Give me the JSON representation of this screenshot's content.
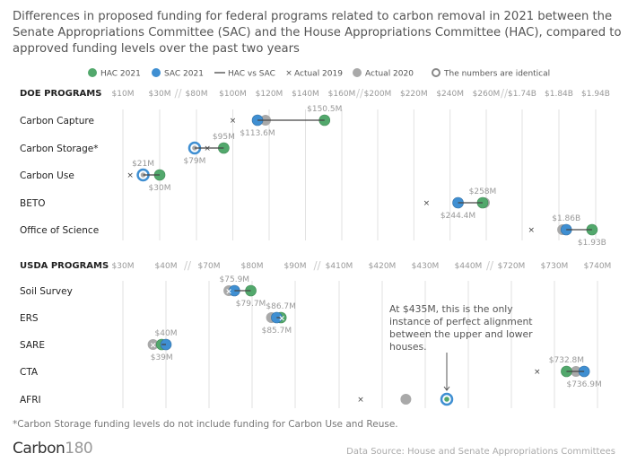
{
  "title": "Differences in proposed funding for federal programs related to carbon removal in 2021 between the Senate Appropriations Committee (SAC) and the House Appropriations Committee (HAC), compared to approved funding levels over the past two years",
  "legend": [
    {
      "key": "hac",
      "label": "HAC 2021"
    },
    {
      "key": "sac",
      "label": "SAC 2021"
    },
    {
      "key": "line",
      "label": "HAC vs SAC"
    },
    {
      "key": "a2019",
      "label": "Actual 2019"
    },
    {
      "key": "a2020",
      "label": "Actual 2020"
    },
    {
      "key": "same",
      "label": "The numbers are identical"
    }
  ],
  "colors": {
    "hac": "#52a86c",
    "sac": "#3f8fd2",
    "a2020": "#a9a9a9",
    "grid": "#e2e2e2"
  },
  "annotation": "At $435M, this is the only instance of perfect alignment between the upper and lower houses.",
  "footnote": "*Carbon Storage funding levels do not include funding for Carbon Use and Reuse.",
  "logo": {
    "main": "Carbon",
    "suffix": "180"
  },
  "source": "Data Source: House and Senate Appropriations Committees",
  "chart_data": [
    {
      "type": "dot-range",
      "section": "DOE PROGRAMS",
      "unit": "$M",
      "x_segments": [
        [
          10,
          30
        ],
        [
          80,
          160
        ],
        [
          200,
          260
        ],
        [
          1740,
          1940
        ]
      ],
      "ticks": [
        {
          "v": 10,
          "label": "$10M"
        },
        {
          "v": 30,
          "label": "$30M"
        },
        {
          "v": 80,
          "label": "$80M"
        },
        {
          "v": 100,
          "label": "$100M"
        },
        {
          "v": 120,
          "label": "$120M"
        },
        {
          "v": 140,
          "label": "$140M"
        },
        {
          "v": 160,
          "label": "$160M"
        },
        {
          "v": 200,
          "label": "$200M"
        },
        {
          "v": 220,
          "label": "$220M"
        },
        {
          "v": 240,
          "label": "$240M"
        },
        {
          "v": 260,
          "label": "$260M"
        },
        {
          "v": 1740,
          "label": "$1.74B"
        },
        {
          "v": 1840,
          "label": "$1.84B"
        },
        {
          "v": 1940,
          "label": "$1.94B"
        }
      ],
      "rows": [
        {
          "name": "Carbon Capture",
          "hac": 150.5,
          "sac": 113.6,
          "a2019": 100,
          "a2020": 118,
          "hac_label": "$150.5M",
          "hac_pos": "above",
          "sac_label": "$113.6M",
          "sac_pos": "below"
        },
        {
          "name": "Carbon Storage*",
          "hac": 95,
          "sac": 79,
          "a2019": 86,
          "a2020": 79,
          "sac_identical_2020": true,
          "hac_label": "$95M",
          "hac_pos": "above",
          "sac_label": "$79M",
          "sac_pos": "below"
        },
        {
          "name": "Carbon Use",
          "hac": 30,
          "sac": 21,
          "a2019": 14,
          "a2020": 21,
          "sac_identical_2020": true,
          "hac_label": "$30M",
          "hac_pos": "below",
          "sac_label": "$21M",
          "sac_pos": "above"
        },
        {
          "name": "BETO",
          "hac": 258,
          "sac": 244.4,
          "a2019": 227,
          "a2020": 259,
          "hac_label": "$258M",
          "hac_pos": "above",
          "sac_label": "$244.4M",
          "sac_pos": "below"
        },
        {
          "name": "Office of Science",
          "hac": 1930,
          "sac": 1860,
          "a2019": 1765,
          "a2020": 1850,
          "hac_label": "$1.93B",
          "hac_pos": "below",
          "sac_label": "$1.86B",
          "sac_pos": "above"
        }
      ]
    },
    {
      "type": "dot-range",
      "section": "USDA PROGRAMS",
      "unit": "$M",
      "x_segments": [
        [
          30,
          40
        ],
        [
          70,
          90
        ],
        [
          410,
          440
        ],
        [
          720,
          740
        ]
      ],
      "ticks": [
        {
          "v": 30,
          "label": "$30M"
        },
        {
          "v": 40,
          "label": "$40M"
        },
        {
          "v": 70,
          "label": "$70M"
        },
        {
          "v": 80,
          "label": "$80M"
        },
        {
          "v": 90,
          "label": "$90M"
        },
        {
          "v": 410,
          "label": "$410M"
        },
        {
          "v": 420,
          "label": "$420M"
        },
        {
          "v": 430,
          "label": "$430M"
        },
        {
          "v": 440,
          "label": "$440M"
        },
        {
          "v": 720,
          "label": "$720M"
        },
        {
          "v": 730,
          "label": "$730M"
        },
        {
          "v": 740,
          "label": "$740M"
        }
      ],
      "rows": [
        {
          "name": "Soil Survey",
          "hac": 79.7,
          "sac": 75.9,
          "a2019": 74.6,
          "a2020": 74.6,
          "sac_label": "$75.9M",
          "sac_pos": "above",
          "hac_label": "$79.7M",
          "hac_pos": "below"
        },
        {
          "name": "ERS",
          "hac": 86.7,
          "sac": 85.7,
          "a2019": 86.9,
          "a2020": 84.5,
          "hac_label": "$86.7M",
          "hac_pos": "above",
          "sac_label": "$85.7M",
          "sac_pos": "below"
        },
        {
          "name": "SARE",
          "hac": 39,
          "sac": 40,
          "a2019": 37,
          "a2020": 37,
          "sac_label": "$40M",
          "sac_pos": "above",
          "hac_label": "$39M",
          "hac_pos": "below"
        },
        {
          "name": "CTA",
          "hac": 732.8,
          "sac": 736.9,
          "a2019": 726,
          "a2020": 735,
          "hac_label": "$732.8M",
          "hac_pos": "above",
          "sac_label": "$736.9M",
          "sac_pos": "below"
        },
        {
          "name": "AFRI",
          "hac": 435,
          "sac": 435,
          "a2019": 415,
          "a2020": 425.5,
          "identical": true
        }
      ]
    }
  ]
}
